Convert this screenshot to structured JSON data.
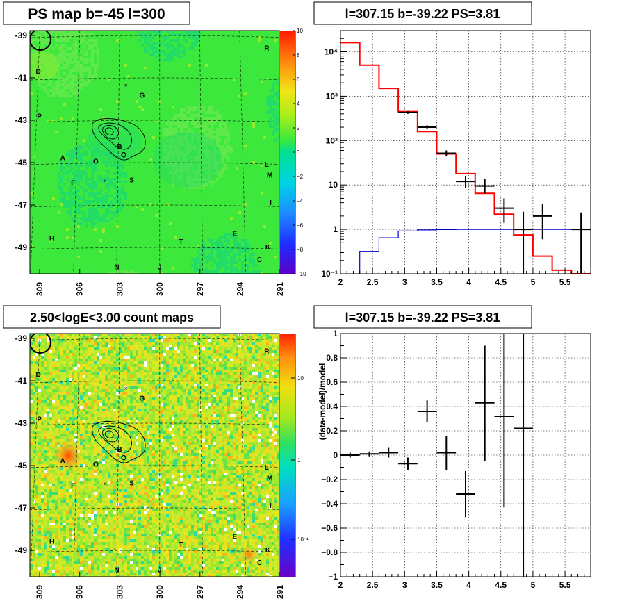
{
  "chart_data": [
    {
      "id": "psmap",
      "type": "heatmap",
      "title": "PS map b=-45 l=300",
      "x_ticks": [
        "309",
        "306",
        "303",
        "300",
        "297",
        "294",
        "291"
      ],
      "y_ticks": [
        "-39",
        "-41",
        "-43",
        "-45",
        "-47",
        "-49"
      ],
      "colorbar": {
        "min": -10,
        "max": 10,
        "ticks": [
          "10",
          "8",
          "6",
          "4",
          "2",
          "0",
          "−2",
          "−4",
          "−6",
          "−8",
          "−10"
        ]
      },
      "sources": [
        {
          "label": "R",
          "l": 292.0,
          "b": -39.5
        },
        {
          "label": "D",
          "l": 309.0,
          "b": -40.6
        },
        {
          "label": "G",
          "l": 301.3,
          "b": -41.8
        },
        {
          "label": "P",
          "l": 308.8,
          "b": -42.7
        },
        {
          "label": "B",
          "l": 302.9,
          "b": -44.2
        },
        {
          "label": "Q",
          "l": 302.6,
          "b": -44.6
        },
        {
          "label": "A",
          "l": 307.0,
          "b": -44.7
        },
        {
          "label": "O",
          "l": 304.6,
          "b": -44.9
        },
        {
          "label": "L",
          "l": 292.3,
          "b": -45.0
        },
        {
          "label": "M",
          "l": 292.1,
          "b": -45.5
        },
        {
          "label": "F",
          "l": 306.2,
          "b": -45.9
        },
        {
          "label": "S",
          "l": 302.0,
          "b": -45.8
        },
        {
          "label": "I",
          "l": 292.1,
          "b": -46.8
        },
        {
          "label": "E",
          "l": 294.7,
          "b": -48.3
        },
        {
          "label": "H",
          "l": 307.6,
          "b": -48.5
        },
        {
          "label": "T",
          "l": 298.5,
          "b": -48.7
        },
        {
          "label": "K",
          "l": 292.4,
          "b": -48.9
        },
        {
          "label": "C",
          "l": 293.0,
          "b": -49.5
        },
        {
          "label": "N",
          "l": 303.0,
          "b": -49.9
        },
        {
          "label": "J",
          "l": 300.0,
          "b": -49.9
        }
      ],
      "markers": [
        {
          "symbol": "×",
          "l": 302.5,
          "b": -41.3
        },
        {
          "symbol": "×",
          "l": 303.9,
          "b": -45.8
        }
      ]
    },
    {
      "id": "countmap",
      "type": "heatmap",
      "title": "2.50<logE<3.00 count maps",
      "x_ticks": [
        "309",
        "306",
        "303",
        "300",
        "297",
        "294",
        "291"
      ],
      "y_ticks": [
        "-39",
        "-41",
        "-43",
        "-45",
        "-47",
        "-49"
      ],
      "colorbar": {
        "scale": "log",
        "ticks": [
          "10",
          "1",
          "10⁻¹"
        ]
      }
    },
    {
      "id": "spectrum",
      "type": "line",
      "title": "l=307.15 b=-39.22 PS=3.81",
      "xlim": [
        2,
        5.9
      ],
      "ylim": [
        0.1,
        30000
      ],
      "yscale": "log",
      "grid": true,
      "x_ticks": [
        "2",
        "2.5",
        "3",
        "3.5",
        "4",
        "4.5",
        "5",
        "5.5"
      ],
      "y_ticks": [
        "10⁻¹",
        "1",
        "10",
        "10²",
        "10³",
        "10⁴"
      ],
      "series": [
        {
          "step_edges": [
            2.0,
            2.3,
            2.6,
            2.9,
            3.2,
            3.5,
            3.8,
            4.1,
            4.4,
            4.7,
            5.0,
            5.3,
            5.6,
            5.9
          ],
          "values": [
            16000,
            5000,
            1500,
            450,
            160,
            50,
            18,
            6.5,
            2.2,
            0.75,
            0.25,
            0.12,
            0.1
          ]
        },
        {
          "step_edges": [
            2.0,
            2.3,
            2.6,
            2.9,
            3.2,
            3.5,
            3.8,
            4.1,
            4.4,
            4.7,
            5.0,
            5.3,
            5.6,
            5.9
          ],
          "values": [
            0.05,
            0.32,
            0.65,
            0.92,
            0.97,
            0.99,
            1.0,
            1.0,
            1.0,
            1.0,
            1.0,
            1.0,
            1.0
          ]
        }
      ],
      "points": [
        {
          "x": 3.05,
          "y": 430,
          "xerr": 0.15,
          "ylo": 400,
          "yhi": 460
        },
        {
          "x": 3.35,
          "y": 200,
          "xerr": 0.15,
          "ylo": 180,
          "yhi": 222
        },
        {
          "x": 3.65,
          "y": 52,
          "xerr": 0.15,
          "ylo": 44,
          "yhi": 60
        },
        {
          "x": 3.95,
          "y": 12,
          "xerr": 0.15,
          "ylo": 8.5,
          "yhi": 16
        },
        {
          "x": 4.25,
          "y": 9.5,
          "xerr": 0.15,
          "ylo": 6.5,
          "yhi": 13.5
        },
        {
          "x": 4.55,
          "y": 3.0,
          "xerr": 0.15,
          "ylo": 1.4,
          "yhi": 5.0
        },
        {
          "x": 4.85,
          "y": 1.0,
          "xerr": 0.15,
          "ylo": 0.1,
          "yhi": 2.5
        },
        {
          "x": 5.15,
          "y": 2.0,
          "xerr": 0.15,
          "ylo": 0.6,
          "yhi": 3.8
        },
        {
          "x": 5.75,
          "y": 1.0,
          "xerr": 0.15,
          "ylo": 0.1,
          "yhi": 2.4
        }
      ]
    },
    {
      "id": "residual",
      "type": "scatter",
      "title": "l=307.15 b=-39.22 PS=3.81",
      "xlim": [
        2,
        5.9
      ],
      "ylim": [
        -1,
        1
      ],
      "grid": true,
      "ylabel": "(data-model)/model",
      "x_ticks": [
        "2",
        "2.5",
        "3",
        "3.5",
        "4",
        "4.5",
        "5",
        "5.5"
      ],
      "y_ticks": [
        "1",
        "0.8",
        "0.6",
        "0.4",
        "0.2",
        "0",
        "−0.2",
        "−0.4",
        "−0.6",
        "−0.8",
        "−1"
      ],
      "points": [
        {
          "x": 2.15,
          "y": 0.0,
          "xerr": 0.15,
          "ylo": -0.02,
          "yhi": 0.02
        },
        {
          "x": 2.45,
          "y": 0.01,
          "xerr": 0.15,
          "ylo": -0.01,
          "yhi": 0.03
        },
        {
          "x": 2.75,
          "y": 0.02,
          "xerr": 0.15,
          "ylo": -0.02,
          "yhi": 0.06
        },
        {
          "x": 3.05,
          "y": -0.07,
          "xerr": 0.15,
          "ylo": -0.12,
          "yhi": -0.02
        },
        {
          "x": 3.35,
          "y": 0.36,
          "xerr": 0.15,
          "ylo": 0.27,
          "yhi": 0.45
        },
        {
          "x": 3.65,
          "y": 0.02,
          "xerr": 0.15,
          "ylo": -0.12,
          "yhi": 0.16
        },
        {
          "x": 3.95,
          "y": -0.32,
          "xerr": 0.15,
          "ylo": -0.51,
          "yhi": -0.13
        },
        {
          "x": 4.25,
          "y": 0.43,
          "xerr": 0.15,
          "ylo": -0.05,
          "yhi": 0.9
        },
        {
          "x": 4.55,
          "y": 0.32,
          "xerr": 0.15,
          "ylo": -0.43,
          "yhi": 1.0
        },
        {
          "x": 4.85,
          "y": 0.22,
          "xerr": 0.15,
          "ylo": -1.0,
          "yhi": 1.0
        }
      ]
    }
  ]
}
